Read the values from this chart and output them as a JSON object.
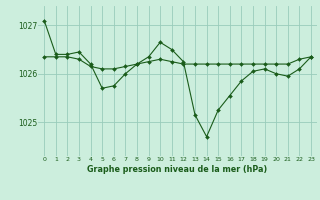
{
  "title": "Graphe pression niveau de la mer (hPa)",
  "background_color": "#cceedd",
  "plot_bg_color": "#cceedd",
  "grid_color": "#99ccbb",
  "line_color": "#1a5c1a",
  "yticks": [
    1025,
    1026,
    1027
  ],
  "xticks": [
    0,
    1,
    2,
    3,
    4,
    5,
    6,
    7,
    8,
    9,
    10,
    11,
    12,
    13,
    14,
    15,
    16,
    17,
    18,
    19,
    20,
    21,
    22,
    23
  ],
  "ylim": [
    1024.3,
    1027.4
  ],
  "xlim": [
    -0.5,
    23.5
  ],
  "series1": [
    1027.1,
    1026.4,
    1026.4,
    1026.45,
    1026.2,
    1025.7,
    1025.75,
    1026.0,
    1026.2,
    1026.35,
    1026.65,
    1026.5,
    1026.25,
    1025.15,
    1024.7,
    1025.25,
    1025.55,
    1025.85,
    1026.05,
    1026.1,
    1026.0,
    1025.95,
    1026.1,
    1026.35
  ],
  "series2": [
    1026.35,
    1026.35,
    1026.35,
    1026.3,
    1026.15,
    1026.1,
    1026.1,
    1026.15,
    1026.2,
    1026.25,
    1026.3,
    1026.25,
    1026.2,
    1026.2,
    1026.2,
    1026.2,
    1026.2,
    1026.2,
    1026.2,
    1026.2,
    1026.2,
    1026.2,
    1026.3,
    1026.35
  ]
}
